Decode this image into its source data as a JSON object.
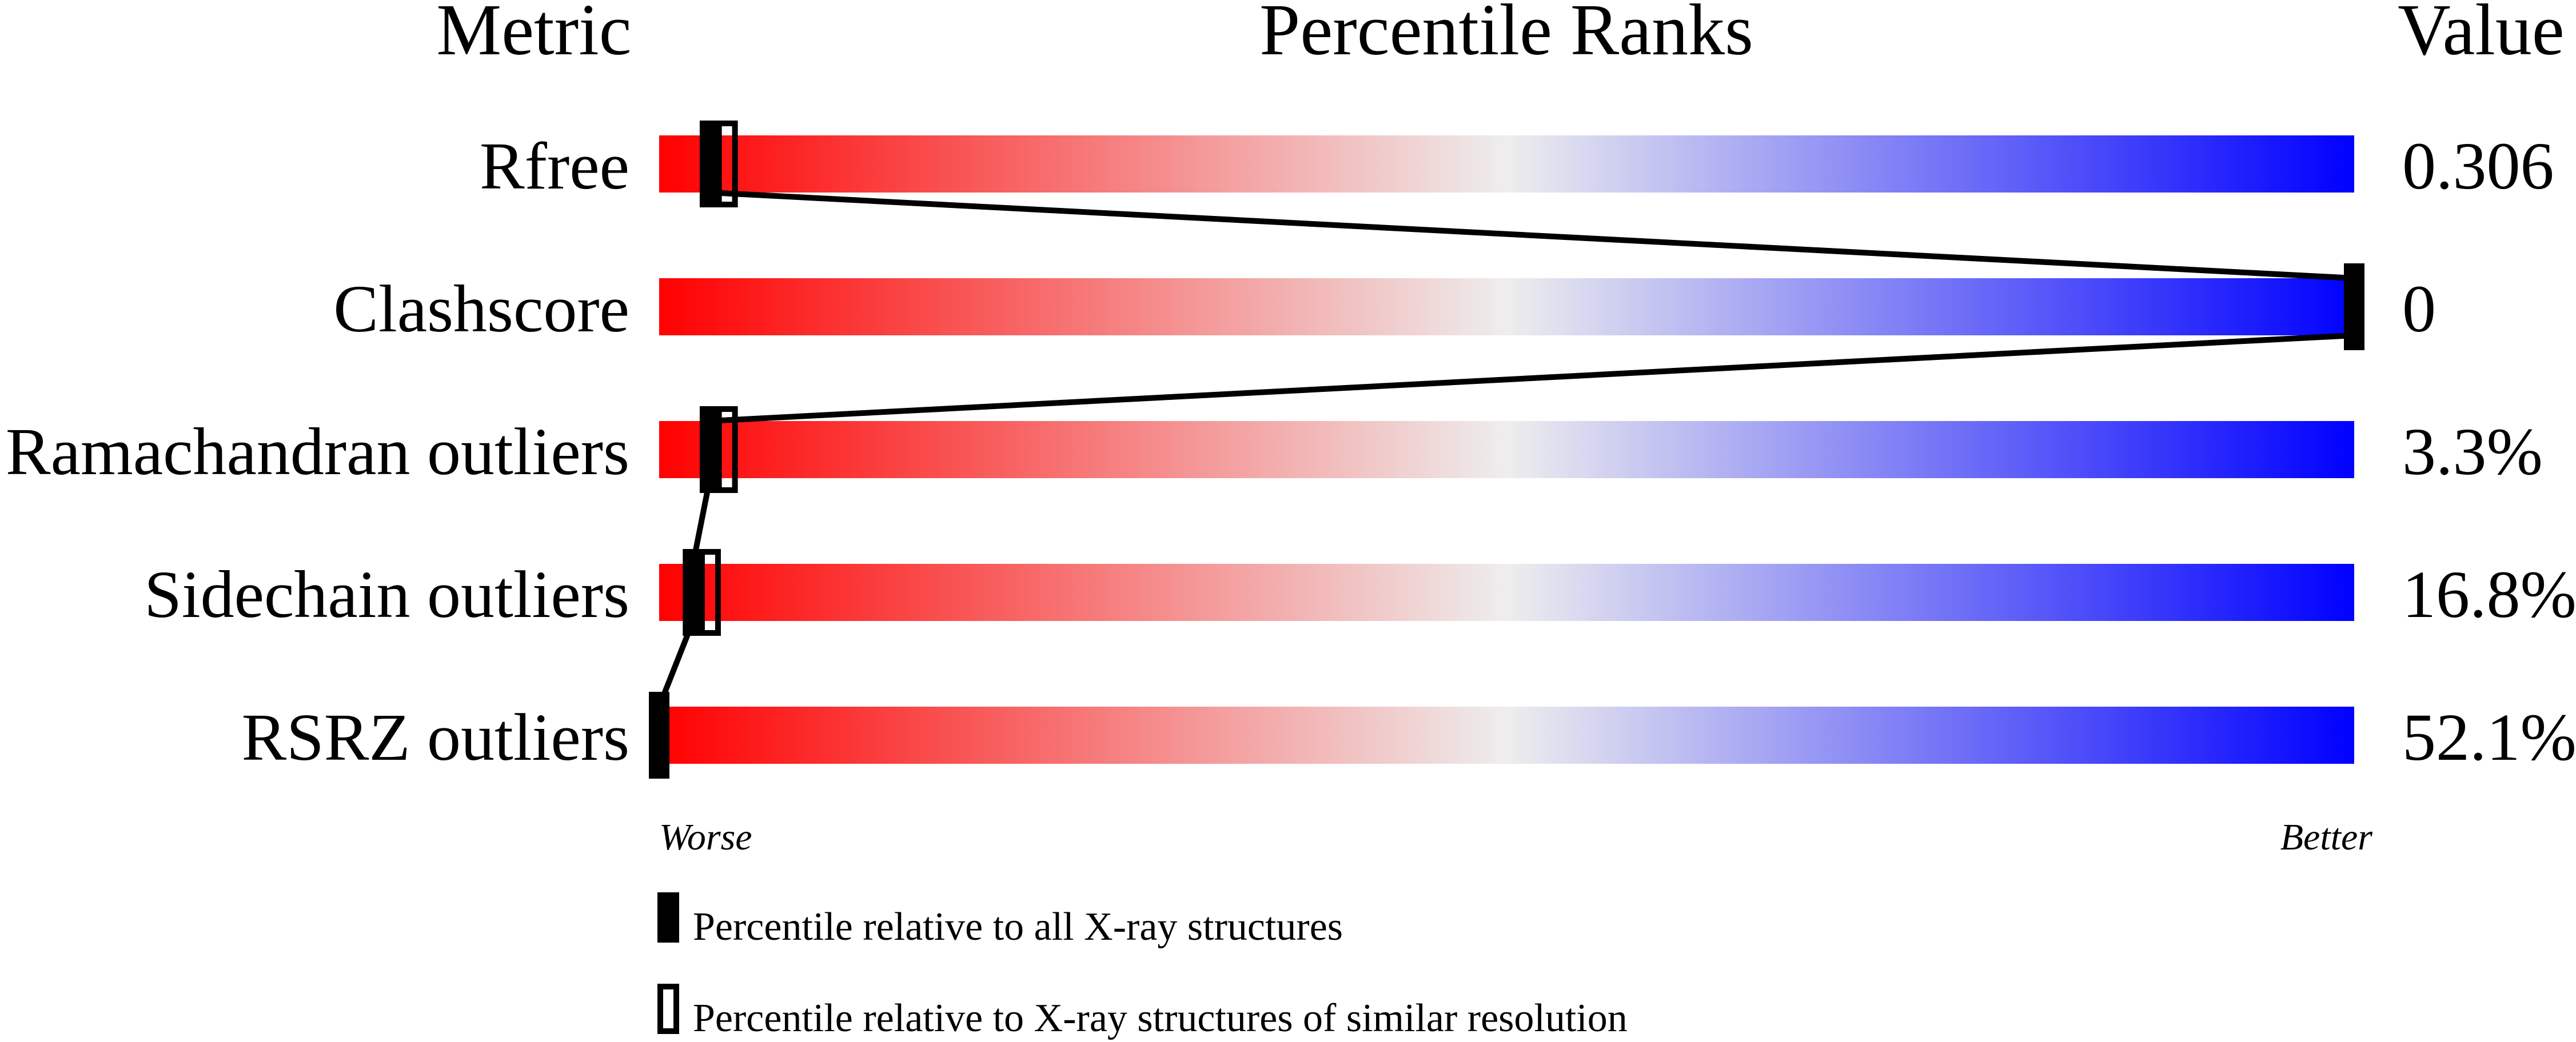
{
  "chart_data": {
    "type": "percentile-slider",
    "headers": {
      "metric": "Metric",
      "ranks": "Percentile Ranks",
      "value": "Value"
    },
    "xlim": [
      0,
      100
    ],
    "metrics": [
      {
        "name": "Rfree",
        "value": "0.306",
        "percentile_all": 3,
        "percentile_similar": 4
      },
      {
        "name": "Clashscore",
        "value": "0",
        "percentile_all": 100,
        "percentile_similar": null
      },
      {
        "name": "Ramachandran outliers",
        "value": "3.3%",
        "percentile_all": 3,
        "percentile_similar": 4
      },
      {
        "name": "Sidechain outliers",
        "value": "16.8%",
        "percentile_all": 2,
        "percentile_similar": 3
      },
      {
        "name": "RSRZ outliers",
        "value": "52.1%",
        "percentile_all": 0,
        "percentile_similar": null
      }
    ],
    "axis": {
      "worse": "Worse",
      "better": "Better"
    },
    "legend": {
      "all": "Percentile relative to all X-ray structures",
      "similar": "Percentile relative to X-ray structures of similar resolution"
    },
    "colors": {
      "worst": "#ff0000",
      "middle": "#eeeeee",
      "best": "#0000ff",
      "marker": "#000000"
    }
  }
}
